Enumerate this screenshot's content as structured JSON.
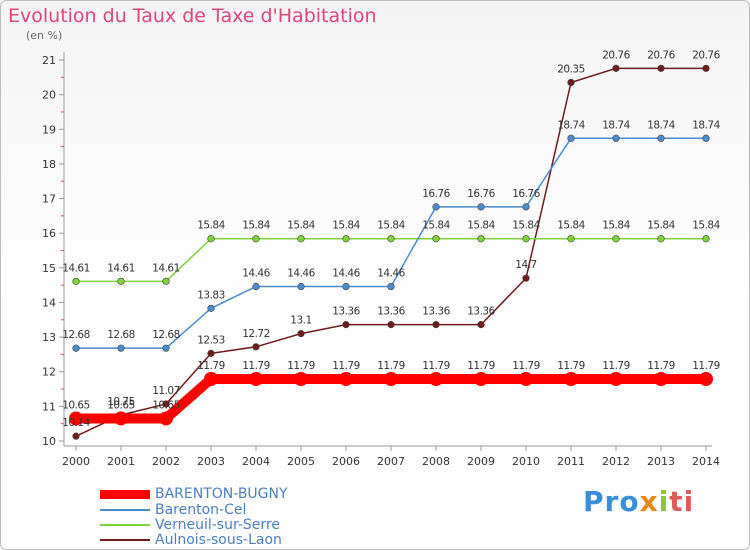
{
  "title": "Evolution du Taux de Taxe d'Habitation",
  "subtitle": "(en %)",
  "logo_text": "Proxiti",
  "chart_data": {
    "type": "line",
    "title": "Evolution du Taux de Taxe d'Habitation",
    "ylabel": "(en %)",
    "xlabel": "",
    "x": [
      "2000",
      "2001",
      "2002",
      "2003",
      "2004",
      "2005",
      "2006",
      "2007",
      "2008",
      "2009",
      "2010",
      "2011",
      "2012",
      "2013",
      "2014"
    ],
    "ylim": [
      10,
      21
    ],
    "yticks": [
      "10",
      "11",
      "12",
      "13",
      "14",
      "15",
      "16",
      "17",
      "18",
      "19",
      "20",
      "21"
    ],
    "grid": false,
    "legend_position": "bottom-left",
    "series": [
      {
        "name": "BARENTON-BUGNY",
        "color": "#ff0000",
        "values": [
          10.65,
          10.65,
          10.65,
          11.79,
          11.79,
          11.79,
          11.79,
          11.79,
          11.79,
          11.79,
          11.79,
          11.79,
          11.79,
          11.79,
          11.79
        ],
        "labels": [
          "10.65",
          "10.65",
          "10.65",
          "11.79",
          "11.79",
          "11.79",
          "11.79",
          "11.79",
          "11.79",
          "11.79",
          "11.79",
          "11.79",
          "11.79",
          "11.79",
          "11.79"
        ]
      },
      {
        "name": "Barenton-Cel",
        "color": "#4a8ccc",
        "values": [
          12.68,
          12.68,
          12.68,
          13.83,
          14.46,
          14.46,
          14.46,
          14.46,
          16.76,
          16.76,
          16.76,
          18.74,
          18.74,
          18.74,
          18.74
        ],
        "labels": [
          "12.68",
          "12.68",
          "12.68",
          "13.83",
          "14.46",
          "14.46",
          "14.46",
          "14.46",
          "16.76",
          "16.76",
          "16.76",
          "18.74",
          "18.74",
          "18.74",
          "18.74"
        ]
      },
      {
        "name": "Verneuil-sur-Serre",
        "color": "#7ed33b",
        "values": [
          14.61,
          14.61,
          14.61,
          15.84,
          15.84,
          15.84,
          15.84,
          15.84,
          15.84,
          15.84,
          15.84,
          15.84,
          15.84,
          15.84,
          15.84
        ],
        "labels": [
          "14.61",
          "14.61",
          "14.61",
          "15.84",
          "15.84",
          "15.84",
          "15.84",
          "15.84",
          "15.84",
          "15.84",
          "15.84",
          "15.84",
          "15.84",
          "15.84",
          "15.84"
        ]
      },
      {
        "name": "Aulnois-sous-Laon",
        "color": "#6e1c1c",
        "values": [
          10.14,
          10.75,
          11.07,
          12.53,
          12.72,
          13.1,
          13.36,
          13.36,
          13.36,
          13.36,
          14.7,
          20.35,
          20.76,
          20.76,
          20.76
        ],
        "labels": [
          "10.14",
          "10.75",
          "11.07",
          "12.53",
          "12.72",
          "13.1",
          "13.36",
          "13.36",
          "13.36",
          "13.36",
          "14.7",
          "20.35",
          "20.76",
          "20.76",
          "20.76"
        ]
      }
    ]
  }
}
